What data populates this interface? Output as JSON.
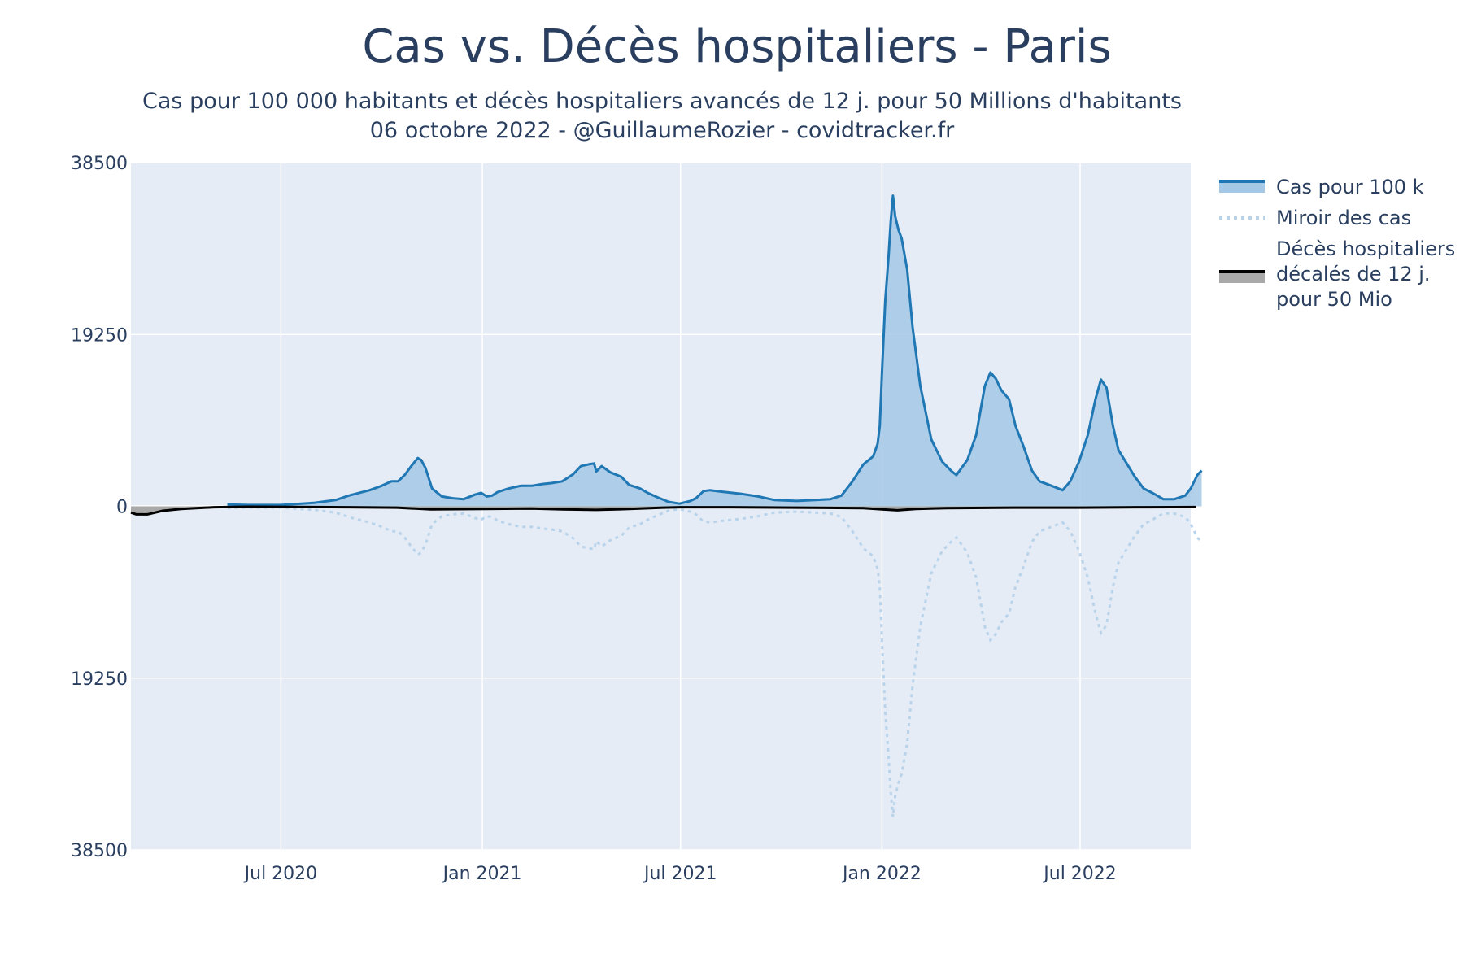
{
  "chart_data": {
    "type": "area",
    "title": "Cas vs. Décès hospitaliers - Paris",
    "subtitle_lines": [
      "Cas pour 100 000 habitants et décès hospitaliers avancés de 12 j. pour 50 Millions d'habitants",
      "06 octobre 2022 - @GuillaumeRozier - covidtracker.fr"
    ],
    "y_ticks": [
      {
        "value": 38500,
        "label": "38500"
      },
      {
        "value": 19250,
        "label": "19250"
      },
      {
        "value": 0,
        "label": "0"
      },
      {
        "value": -19250,
        "label": "19250"
      },
      {
        "value": -38500,
        "label": "38500"
      }
    ],
    "x_ticks": [
      {
        "date": "2020-07-01",
        "label": "Jul 2020"
      },
      {
        "date": "2021-01-01",
        "label": "Jan 2021"
      },
      {
        "date": "2021-07-01",
        "label": "Jul 2021"
      },
      {
        "date": "2022-01-01",
        "label": "Jan 2022"
      },
      {
        "date": "2022-07-01",
        "label": "Jul 2022"
      }
    ],
    "xlim": [
      "2020-02-15",
      "2022-10-10"
    ],
    "ylim": [
      -38500,
      38500
    ],
    "grid": true,
    "legend_position": "right",
    "colors": {
      "plot_bg": "#e5ecf6",
      "grid": "#ffffff",
      "cases_line": "#1f77b4",
      "cases_fill": "#a5c8e6",
      "mirror_line": "#b9d3ea",
      "deaths_line": "#000000",
      "deaths_fill": "#a9a9a9"
    },
    "series": [
      {
        "name": "Cas pour 100 k",
        "points": [
          [
            "2020-05-13",
            200
          ],
          [
            "2020-06-01",
            150
          ],
          [
            "2020-07-01",
            150
          ],
          [
            "2020-08-01",
            400
          ],
          [
            "2020-08-20",
            700
          ],
          [
            "2020-09-01",
            1200
          ],
          [
            "2020-09-20",
            1800
          ],
          [
            "2020-10-01",
            2300
          ],
          [
            "2020-10-10",
            2800
          ],
          [
            "2020-10-16",
            2800
          ],
          [
            "2020-10-22",
            3500
          ],
          [
            "2020-10-28",
            4500
          ],
          [
            "2020-11-03",
            5400
          ],
          [
            "2020-11-06",
            5200
          ],
          [
            "2020-11-10",
            4300
          ],
          [
            "2020-11-16",
            2000
          ],
          [
            "2020-11-25",
            1100
          ],
          [
            "2020-12-05",
            900
          ],
          [
            "2020-12-15",
            800
          ],
          [
            "2020-12-25",
            1300
          ],
          [
            "2020-12-31",
            1500
          ],
          [
            "2021-01-05",
            1100
          ],
          [
            "2021-01-10",
            1200
          ],
          [
            "2021-01-15",
            1600
          ],
          [
            "2021-01-25",
            2000
          ],
          [
            "2021-02-05",
            2300
          ],
          [
            "2021-02-15",
            2300
          ],
          [
            "2021-02-25",
            2500
          ],
          [
            "2021-03-05",
            2600
          ],
          [
            "2021-03-15",
            2800
          ],
          [
            "2021-03-25",
            3600
          ],
          [
            "2021-04-01",
            4500
          ],
          [
            "2021-04-08",
            4700
          ],
          [
            "2021-04-13",
            4800
          ],
          [
            "2021-04-15",
            3900
          ],
          [
            "2021-04-20",
            4500
          ],
          [
            "2021-04-28",
            3800
          ],
          [
            "2021-05-08",
            3300
          ],
          [
            "2021-05-15",
            2400
          ],
          [
            "2021-05-25",
            2000
          ],
          [
            "2021-06-01",
            1500
          ],
          [
            "2021-06-10",
            1000
          ],
          [
            "2021-06-20",
            500
          ],
          [
            "2021-06-30",
            300
          ],
          [
            "2021-07-10",
            600
          ],
          [
            "2021-07-15",
            900
          ],
          [
            "2021-07-22",
            1700
          ],
          [
            "2021-07-28",
            1800
          ],
          [
            "2021-08-10",
            1600
          ],
          [
            "2021-08-25",
            1400
          ],
          [
            "2021-09-10",
            1100
          ],
          [
            "2021-09-25",
            700
          ],
          [
            "2021-10-15",
            600
          ],
          [
            "2021-11-01",
            700
          ],
          [
            "2021-11-15",
            800
          ],
          [
            "2021-11-25",
            1200
          ],
          [
            "2021-12-05",
            2800
          ],
          [
            "2021-12-15",
            4700
          ],
          [
            "2021-12-20",
            5200
          ],
          [
            "2021-12-24",
            5600
          ],
          [
            "2021-12-28",
            7000
          ],
          [
            "2021-12-30",
            9000
          ],
          [
            "2022-01-01",
            15000
          ],
          [
            "2022-01-04",
            23000
          ],
          [
            "2022-01-07",
            28000
          ],
          [
            "2022-01-09",
            32000
          ],
          [
            "2022-01-11",
            34800
          ],
          [
            "2022-01-13",
            32500
          ],
          [
            "2022-01-16",
            31000
          ],
          [
            "2022-01-19",
            30000
          ],
          [
            "2022-01-24",
            26500
          ],
          [
            "2022-01-29",
            20000
          ],
          [
            "2022-02-05",
            13500
          ],
          [
            "2022-02-15",
            7500
          ],
          [
            "2022-02-25",
            5000
          ],
          [
            "2022-03-05",
            4000
          ],
          [
            "2022-03-10",
            3500
          ],
          [
            "2022-03-20",
            5200
          ],
          [
            "2022-03-28",
            8000
          ],
          [
            "2022-04-05",
            13500
          ],
          [
            "2022-04-10",
            15000
          ],
          [
            "2022-04-15",
            14300
          ],
          [
            "2022-04-20",
            13000
          ],
          [
            "2022-04-27",
            12000
          ],
          [
            "2022-05-03",
            9000
          ],
          [
            "2022-05-10",
            6800
          ],
          [
            "2022-05-18",
            4000
          ],
          [
            "2022-05-25",
            2800
          ],
          [
            "2022-06-05",
            2300
          ],
          [
            "2022-06-15",
            1800
          ],
          [
            "2022-06-22",
            2800
          ],
          [
            "2022-06-30",
            5000
          ],
          [
            "2022-07-08",
            8000
          ],
          [
            "2022-07-15",
            12000
          ],
          [
            "2022-07-20",
            14200
          ],
          [
            "2022-07-25",
            13300
          ],
          [
            "2022-07-31",
            9000
          ],
          [
            "2022-08-05",
            6300
          ],
          [
            "2022-08-12",
            4900
          ],
          [
            "2022-08-20",
            3300
          ],
          [
            "2022-08-28",
            2000
          ],
          [
            "2022-09-05",
            1500
          ],
          [
            "2022-09-15",
            800
          ],
          [
            "2022-09-25",
            800
          ],
          [
            "2022-10-05",
            1200
          ],
          [
            "2022-10-10",
            2000
          ],
          [
            "2022-10-16",
            3500
          ],
          [
            "2022-10-20",
            4000
          ]
        ]
      },
      {
        "name": "Miroir des cas",
        "mirror_of": "Cas pour 100 k"
      },
      {
        "name": "Décès hospitaliers décalés de 12 j. pour 50 Mio",
        "legend_lines": [
          "Décès hospitaliers",
          "décalés de 12 j.",
          "pour 50 Mio"
        ],
        "points": [
          [
            "2020-02-15",
            -700
          ],
          [
            "2020-02-20",
            -900
          ],
          [
            "2020-03-01",
            -900
          ],
          [
            "2020-03-15",
            -500
          ],
          [
            "2020-04-01",
            -300
          ],
          [
            "2020-05-01",
            -100
          ],
          [
            "2020-06-01",
            -50
          ],
          [
            "2020-09-01",
            -100
          ],
          [
            "2020-10-15",
            -150
          ],
          [
            "2020-11-15",
            -350
          ],
          [
            "2021-01-01",
            -300
          ],
          [
            "2021-02-15",
            -250
          ],
          [
            "2021-03-15",
            -350
          ],
          [
            "2021-04-15",
            -400
          ],
          [
            "2021-05-15",
            -300
          ],
          [
            "2021-06-15",
            -150
          ],
          [
            "2021-07-01",
            -100
          ],
          [
            "2021-08-15",
            -100
          ],
          [
            "2021-12-15",
            -200
          ],
          [
            "2022-01-01",
            -350
          ],
          [
            "2022-01-15",
            -450
          ],
          [
            "2022-02-01",
            -300
          ],
          [
            "2022-03-01",
            -200
          ],
          [
            "2022-05-01",
            -150
          ],
          [
            "2022-07-01",
            -150
          ],
          [
            "2022-09-01",
            -100
          ],
          [
            "2022-10-15",
            -80
          ]
        ]
      }
    ],
    "legend": [
      {
        "label_lines": [
          "Cas pour 100 k"
        ],
        "style": "area"
      },
      {
        "label_lines": [
          "Miroir des cas"
        ],
        "style": "dotted"
      },
      {
        "label_lines": [
          "Décès hospitaliers",
          "décalés de 12 j.",
          "pour 50 Mio"
        ],
        "style": "area-dark"
      }
    ]
  }
}
